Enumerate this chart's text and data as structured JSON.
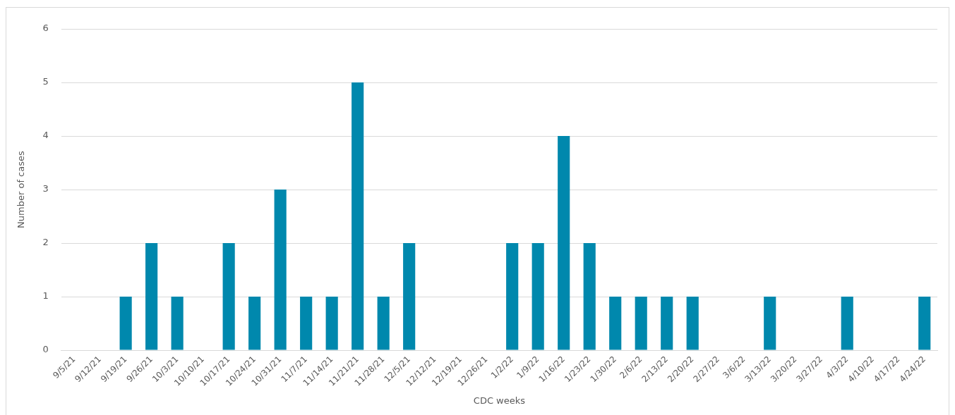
{
  "chart_data": {
    "type": "bar",
    "xlabel": "CDC weeks",
    "ylabel": "Number of cases",
    "categories": [
      "9/5/21",
      "9/12/21",
      "9/19/21",
      "9/26/21",
      "10/3/21",
      "10/10/21",
      "10/17/21",
      "10/24/21",
      "10/31/21",
      "11/7/21",
      "11/14/21",
      "11/21/21",
      "11/28/21",
      "12/5/21",
      "12/12/21",
      "12/19/21",
      "12/26/21",
      "1/2/22",
      "1/9/22",
      "1/16/22",
      "1/23/22",
      "1/30/22",
      "2/6/22",
      "2/13/22",
      "2/20/22",
      "2/27/22",
      "3/6/22",
      "3/13/22",
      "3/20/22",
      "3/27/22",
      "4/3/22",
      "4/10/22",
      "4/17/22",
      "4/24/22"
    ],
    "values": [
      0,
      0,
      1,
      2,
      1,
      0,
      2,
      1,
      3,
      1,
      1,
      5,
      1,
      2,
      0,
      0,
      0,
      2,
      2,
      4,
      2,
      1,
      1,
      1,
      1,
      0,
      0,
      1,
      0,
      0,
      1,
      0,
      0,
      1
    ],
    "color": "#0088ad",
    "ylim": [
      0,
      6
    ],
    "yticks": [
      0,
      1,
      2,
      3,
      4,
      5,
      6
    ],
    "grid": "y",
    "legend": false
  }
}
